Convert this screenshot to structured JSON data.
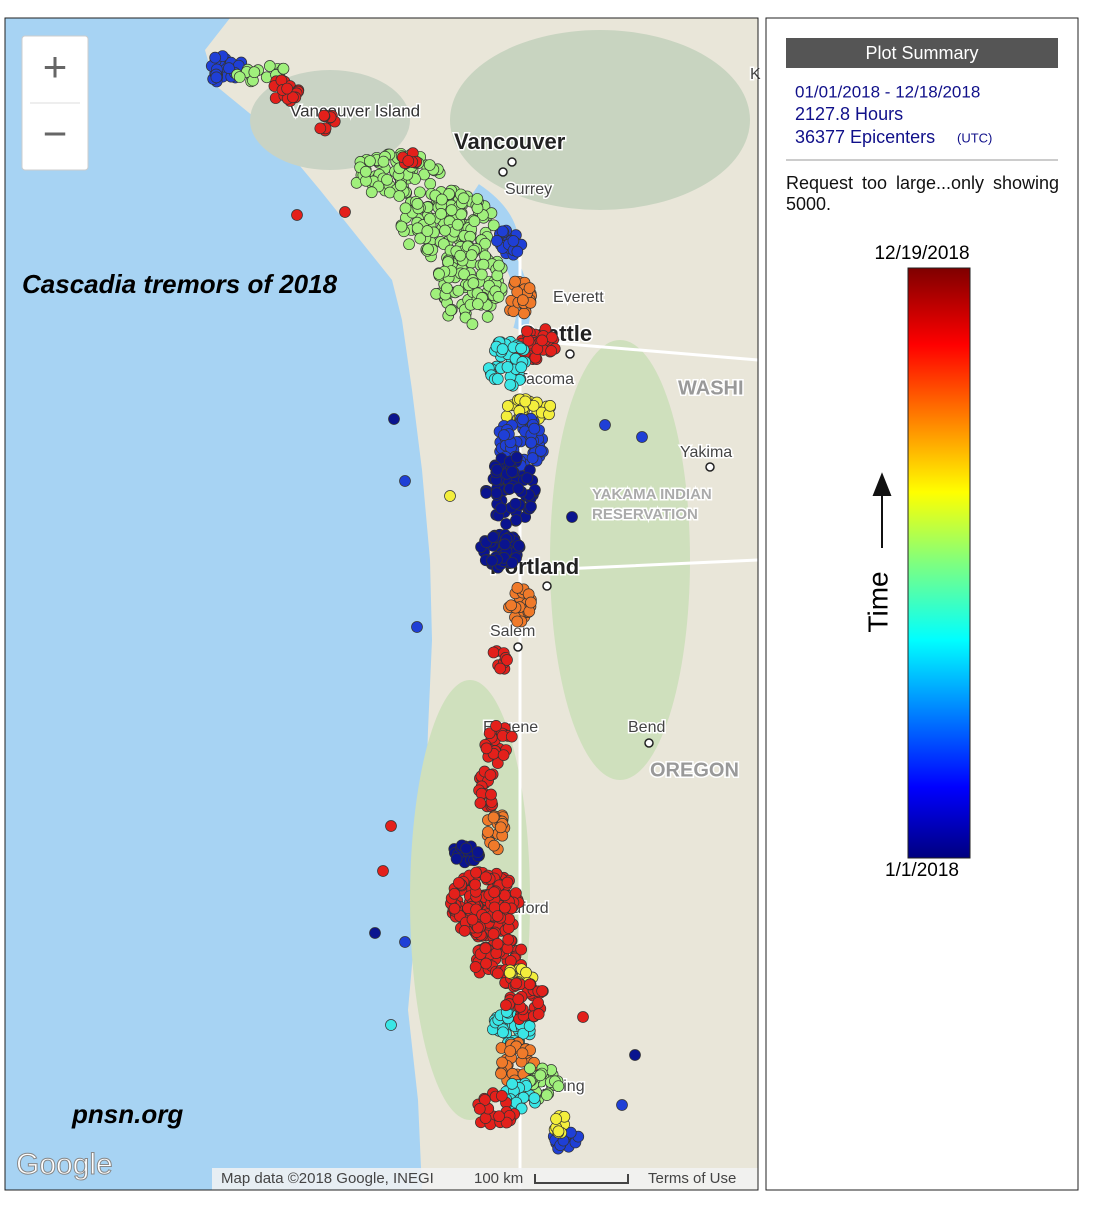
{
  "map": {
    "title": "Cascadia tremors of 2018",
    "credit": "pnsn.org",
    "zoom_in": "+",
    "zoom_out": "−",
    "logo": "Google",
    "attribution": "Map data ©2018 Google, INEGI",
    "scale": "100 km",
    "terms": "Terms of Use",
    "places": [
      "Vancouver Island",
      "Vancouver",
      "Surrey",
      "Everett",
      "Seattle",
      "Tacoma",
      "WASHI",
      "Yakima",
      "YAKAMA INDIAN",
      "RESERVATION",
      "Portland",
      "Salem",
      "Eugene",
      "Bend",
      "OREGON",
      "Medford",
      "Redding",
      "K"
    ]
  },
  "panel": {
    "heading": "Plot Summary",
    "date_range": "01/01/2018 - 12/18/2018",
    "hours": "2127.8 Hours",
    "epicenters": "36377 Epicenters",
    "tz": "(UTC)",
    "note": "Request too large...only showing 5000.",
    "colorbar": {
      "top": "12/19/2018",
      "bottom": "1/1/2018",
      "axis": "Time"
    }
  }
}
